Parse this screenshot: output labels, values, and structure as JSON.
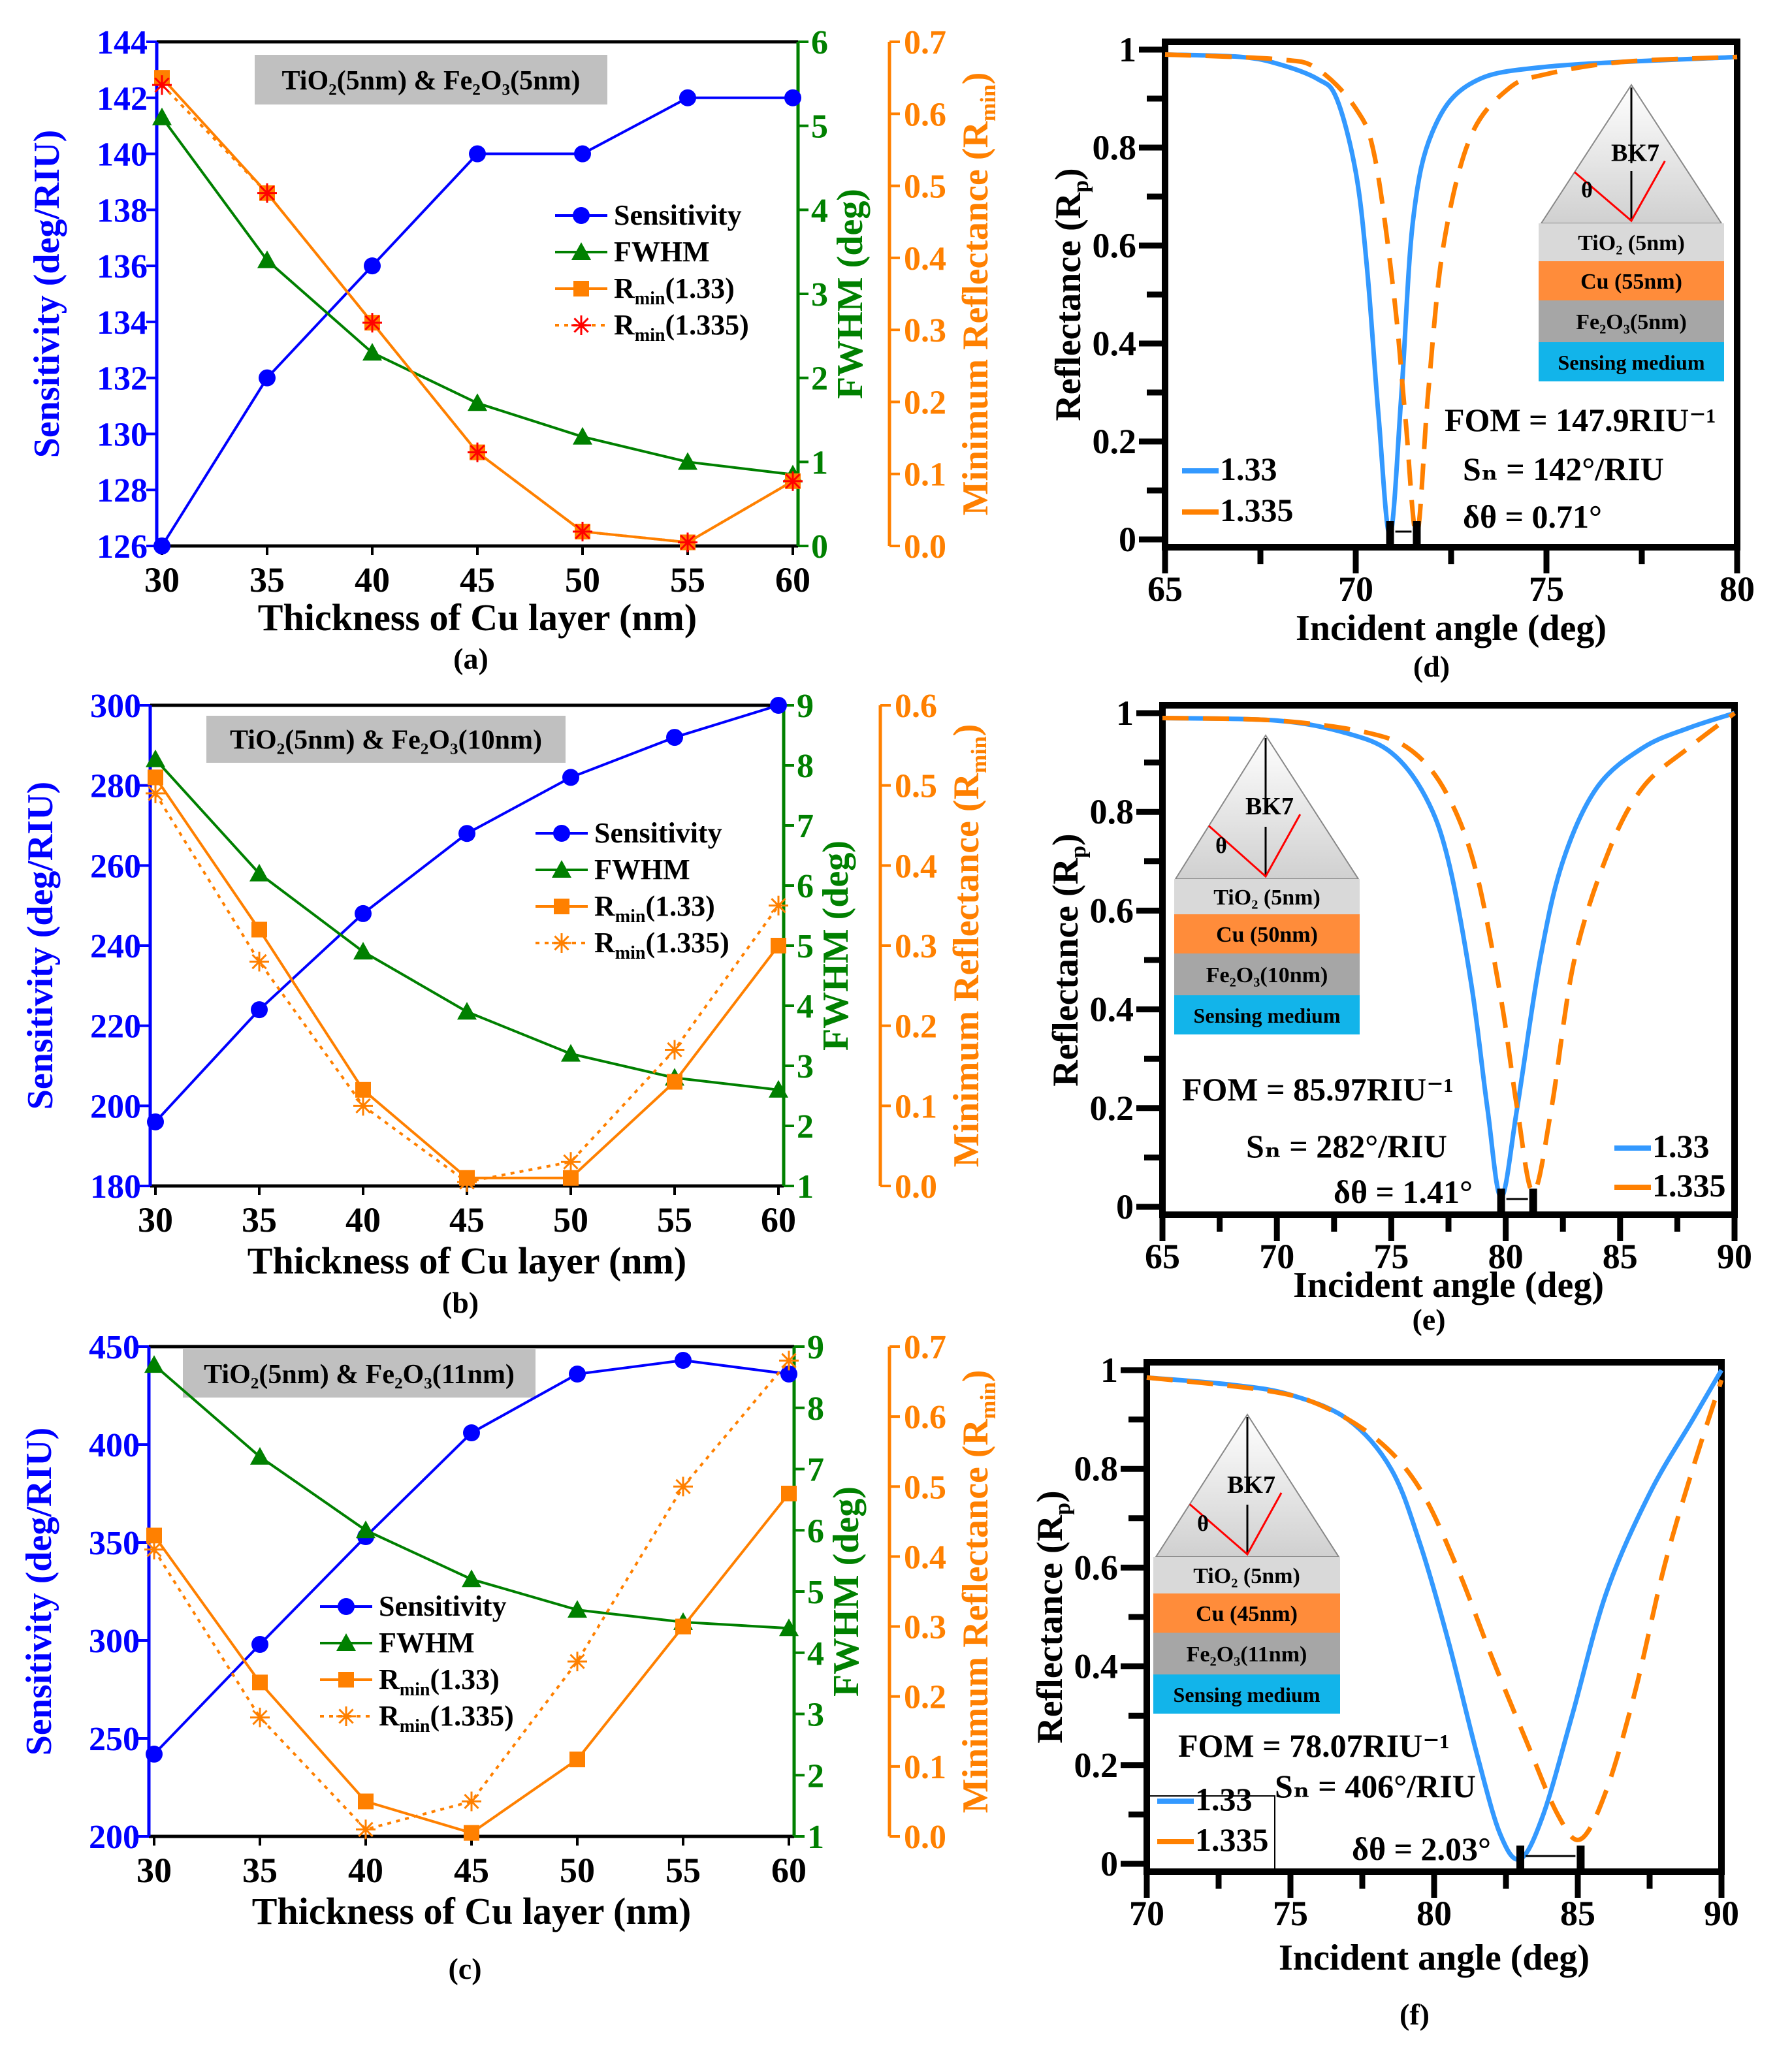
{
  "chart_data": [
    {
      "id": "a",
      "type": "line",
      "label": "(a)",
      "title_box": "TiO₂(5nm) & Fe₂O₃(5nm)",
      "xlabel": "Thickness of Cu layer (nm)",
      "x": [
        30,
        35,
        40,
        45,
        50,
        55,
        60
      ],
      "xlim": [
        30,
        60
      ],
      "xticks": [
        30,
        35,
        40,
        45,
        50,
        55,
        60
      ],
      "axes": {
        "left": {
          "label": "Sensitivity (deg/RIU)",
          "ylim": [
            126,
            144
          ],
          "ticks": [
            126,
            128,
            130,
            132,
            134,
            136,
            138,
            140,
            142,
            144
          ],
          "color": "#0000ff",
          "decimals": 0
        },
        "right": {
          "label": "FWHM (deg)",
          "ylim": [
            0,
            6
          ],
          "ticks": [
            0,
            1,
            2,
            3,
            4,
            5,
            6
          ],
          "color": "#008000",
          "decimals": 0
        },
        "right2": {
          "label": "Minimum Reflectance (R",
          "label_sub": "min",
          "label_tail": ")",
          "ylim": [
            0,
            0.7
          ],
          "ticks": [
            0,
            0.1,
            0.2,
            0.3,
            0.4,
            0.5,
            0.6,
            0.7
          ],
          "color": "#ff8000",
          "decimals": 1
        }
      },
      "series": [
        {
          "name": "Sensitivity",
          "axis": "left",
          "marker": "circle",
          "color": "#0000ff",
          "dash": "solid",
          "values": [
            126,
            132,
            136,
            140,
            140,
            142,
            142
          ]
        },
        {
          "name": "FWHM",
          "axis": "right",
          "marker": "triangle",
          "color": "#008000",
          "dash": "solid",
          "values": [
            5.1,
            3.4,
            2.3,
            1.7,
            1.3,
            1.0,
            0.85
          ]
        },
        {
          "name": "R",
          "name_sub": "min",
          "name_tail": "(1.33)",
          "axis": "right2",
          "marker": "square",
          "color": "#ff8000",
          "dash": "solid",
          "values": [
            0.65,
            0.49,
            0.31,
            0.13,
            0.02,
            0.005,
            0.09
          ]
        },
        {
          "name": "R",
          "name_sub": "min",
          "name_tail": "(1.335)",
          "axis": "right2",
          "marker": "asterisk",
          "color": "#ff8000",
          "marker_color": "#ff0000",
          "dash": "dotted",
          "values": [
            0.64,
            0.49,
            0.31,
            0.13,
            0.02,
            0.005,
            0.09
          ]
        }
      ],
      "legend": "center-right"
    },
    {
      "id": "b",
      "type": "line",
      "label": "(b)",
      "title_box": "TiO₂(5nm) & Fe₂O₃(10nm)",
      "xlabel": "Thickness of Cu layer (nm)",
      "x": [
        30,
        35,
        40,
        45,
        50,
        55,
        60
      ],
      "xlim": [
        30,
        60
      ],
      "xticks": [
        30,
        35,
        40,
        45,
        50,
        55,
        60
      ],
      "axes": {
        "left": {
          "label": "Sensitivity (deg/RIU)",
          "ylim": [
            180,
            300
          ],
          "ticks": [
            180,
            200,
            220,
            240,
            260,
            280,
            300
          ],
          "color": "#0000ff",
          "decimals": 0
        },
        "right": {
          "label": "FWHM (deg)",
          "ylim": [
            1,
            9
          ],
          "ticks": [
            1,
            2,
            3,
            4,
            5,
            6,
            7,
            8,
            9
          ],
          "color": "#008000",
          "decimals": 0
        },
        "right2": {
          "label": "Minimum Reflectance (R",
          "label_sub": "min",
          "label_tail": ")",
          "ylim": [
            0,
            0.6
          ],
          "ticks": [
            0,
            0.1,
            0.2,
            0.3,
            0.4,
            0.5,
            0.6
          ],
          "color": "#ff8000",
          "decimals": 1
        }
      },
      "series": [
        {
          "name": "Sensitivity",
          "axis": "left",
          "marker": "circle",
          "color": "#0000ff",
          "dash": "solid",
          "values": [
            196,
            224,
            248,
            268,
            282,
            292,
            300
          ]
        },
        {
          "name": "FWHM",
          "axis": "right",
          "marker": "triangle",
          "color": "#008000",
          "dash": "solid",
          "values": [
            8.1,
            6.2,
            4.9,
            3.9,
            3.2,
            2.8,
            2.6
          ]
        },
        {
          "name": "R",
          "name_sub": "min",
          "name_tail": "(1.33)",
          "axis": "right2",
          "marker": "square",
          "color": "#ff8000",
          "dash": "solid",
          "values": [
            0.51,
            0.32,
            0.12,
            0.01,
            0.01,
            0.13,
            0.3
          ]
        },
        {
          "name": "R",
          "name_sub": "min",
          "name_tail": "(1.335)",
          "axis": "right2",
          "marker": "asterisk",
          "color": "#ff8000",
          "marker_color": "#ff8000",
          "dash": "dotted",
          "values": [
            0.49,
            0.28,
            0.1,
            0.005,
            0.03,
            0.17,
            0.35
          ]
        }
      ],
      "legend": "center-right"
    },
    {
      "id": "c",
      "type": "line",
      "label": "(c)",
      "title_box": "TiO₂(5nm) & Fe₂O₃(11nm)",
      "xlabel": "Thickness of Cu layer (nm)",
      "x": [
        30,
        35,
        40,
        45,
        50,
        55,
        60
      ],
      "xlim": [
        30,
        60
      ],
      "xticks": [
        30,
        35,
        40,
        45,
        50,
        55,
        60
      ],
      "axes": {
        "left": {
          "label": "Sensitivity (deg/RIU)",
          "ylim": [
            200,
            450
          ],
          "ticks": [
            200,
            250,
            300,
            350,
            400,
            450
          ],
          "color": "#0000ff",
          "decimals": 0
        },
        "right": {
          "label": "FWHM (deg)",
          "ylim": [
            1,
            9
          ],
          "ticks": [
            1,
            2,
            3,
            4,
            5,
            6,
            7,
            8,
            9
          ],
          "color": "#008000",
          "decimals": 0
        },
        "right2": {
          "label": "Minimum Reflectance (R",
          "label_sub": "min",
          "label_tail": ")",
          "ylim": [
            0,
            0.7
          ],
          "ticks": [
            0,
            0.1,
            0.2,
            0.3,
            0.4,
            0.5,
            0.6,
            0.7
          ],
          "color": "#ff8000",
          "decimals": 1
        }
      },
      "series": [
        {
          "name": "Sensitivity",
          "axis": "left",
          "marker": "circle",
          "color": "#0000ff",
          "dash": "solid",
          "values": [
            242,
            298,
            353,
            406,
            436,
            443,
            436
          ]
        },
        {
          "name": "FWHM",
          "axis": "right",
          "marker": "triangle",
          "color": "#008000",
          "dash": "solid",
          "values": [
            8.7,
            7.2,
            6.0,
            5.2,
            4.7,
            4.5,
            4.4
          ]
        },
        {
          "name": "R",
          "name_sub": "min",
          "name_tail": "(1.33)",
          "axis": "right2",
          "marker": "square",
          "color": "#ff8000",
          "dash": "solid",
          "values": [
            0.43,
            0.22,
            0.05,
            0.005,
            0.11,
            0.3,
            0.49
          ]
        },
        {
          "name": "R",
          "name_sub": "min",
          "name_tail": "(1.335)",
          "axis": "right2",
          "marker": "asterisk",
          "color": "#ff8000",
          "marker_color": "#ff8000",
          "dash": "dotted",
          "values": [
            0.41,
            0.17,
            0.01,
            0.05,
            0.25,
            0.5,
            0.68
          ]
        }
      ],
      "legend": "center"
    },
    {
      "id": "d",
      "type": "line",
      "label": "(d)",
      "xlabel": "Incident angle (deg)",
      "ylabel": "Reflectance (R",
      "ylabel_sub": "p",
      "ylabel_tail": ")",
      "xlim": [
        65,
        80
      ],
      "xticks": [
        65,
        70,
        75,
        80
      ],
      "ylim": [
        0,
        1
      ],
      "yticks": [
        0,
        0.2,
        0.4,
        0.6,
        0.8,
        1
      ],
      "series": [
        {
          "name": "1.33",
          "color": "#3399ff",
          "dash": "solid",
          "x": [
            65,
            67,
            68,
            69,
            69.5,
            70,
            70.3,
            70.6,
            70.9,
            71.2,
            71.5,
            72,
            73,
            75,
            80
          ],
          "y": [
            0.99,
            0.985,
            0.97,
            0.94,
            0.9,
            0.75,
            0.55,
            0.25,
            0.01,
            0.3,
            0.65,
            0.83,
            0.93,
            0.965,
            0.985
          ]
        },
        {
          "name": "1.335",
          "color": "#ff8000",
          "dash": "dashed",
          "x": [
            65,
            68,
            69,
            70,
            70.5,
            71,
            71.3,
            71.6,
            71.9,
            72.3,
            73,
            74,
            75,
            77,
            80
          ],
          "y": [
            0.99,
            0.98,
            0.96,
            0.88,
            0.78,
            0.5,
            0.25,
            0.01,
            0.3,
            0.6,
            0.82,
            0.92,
            0.95,
            0.975,
            0.985
          ]
        }
      ],
      "inset": {
        "prism": "BK7",
        "angle": "θ",
        "layers": [
          {
            "label": "TiO₂ (5nm)",
            "color": "#d9d9d9"
          },
          {
            "label": "Cu (55nm)",
            "color": "#ff8c3a"
          },
          {
            "label": "Fe₂O₃(5nm)",
            "color": "#a6a6a6"
          },
          {
            "label": "Sensing medium",
            "color": "#12b4ea"
          }
        ]
      },
      "annotations": {
        "fom": "FOM = 147.9RIU⁻¹",
        "sn": "Sₙ = 142°/RIU",
        "dtheta": "δθ = 0.71°"
      },
      "legend": "bottom-left"
    },
    {
      "id": "e",
      "type": "line",
      "label": "(e)",
      "xlabel": "Incident angle (deg)",
      "ylabel": "Reflectance (R",
      "ylabel_sub": "p",
      "ylabel_tail": ")",
      "xlim": [
        65,
        90
      ],
      "xticks": [
        65,
        70,
        75,
        80,
        85,
        90
      ],
      "ylim": [
        0,
        1
      ],
      "yticks": [
        0,
        0.2,
        0.4,
        0.6,
        0.8,
        1
      ],
      "series": [
        {
          "name": "1.33",
          "color": "#3399ff",
          "dash": "solid",
          "x": [
            65,
            70,
            73,
            75,
            76.5,
            77.5,
            78.5,
            79.2,
            79.8,
            80.5,
            81.5,
            82.5,
            84,
            86,
            88,
            90
          ],
          "y": [
            0.99,
            0.985,
            0.96,
            0.92,
            0.83,
            0.7,
            0.45,
            0.2,
            0.02,
            0.2,
            0.5,
            0.7,
            0.85,
            0.93,
            0.97,
            1.0
          ]
        },
        {
          "name": "1.335",
          "color": "#ff8000",
          "dash": "dashed",
          "x": [
            65,
            70,
            74,
            76,
            77.5,
            78.7,
            79.8,
            80.5,
            81.2,
            82,
            83,
            84.5,
            86,
            88,
            90
          ],
          "y": [
            0.99,
            0.985,
            0.96,
            0.92,
            0.83,
            0.68,
            0.42,
            0.2,
            0.03,
            0.2,
            0.5,
            0.72,
            0.85,
            0.93,
            1.0
          ]
        }
      ],
      "inset": {
        "prism": "BK7",
        "angle": "θ",
        "layers": [
          {
            "label": "TiO₂ (5nm)",
            "color": "#d9d9d9"
          },
          {
            "label": "Cu (50nm)",
            "color": "#ff8c3a"
          },
          {
            "label": "Fe₂O₃(10nm)",
            "color": "#a6a6a6"
          },
          {
            "label": "Sensing medium",
            "color": "#12b4ea"
          }
        ]
      },
      "annotations": {
        "fom": "FOM = 85.97RIU⁻¹",
        "sn": "Sₙ = 282°/RIU",
        "dtheta": "δθ = 1.41°"
      },
      "legend": "bottom-right"
    },
    {
      "id": "f",
      "type": "line",
      "label": "(f)",
      "xlabel": "Incident angle (deg)",
      "ylabel": "Reflectance (R",
      "ylabel_sub": "p",
      "ylabel_tail": ")",
      "xlim": [
        70,
        90
      ],
      "xticks": [
        70,
        75,
        80,
        85,
        90
      ],
      "ylim": [
        0,
        1
      ],
      "yticks": [
        0,
        0.2,
        0.4,
        0.6,
        0.8,
        1
      ],
      "series": [
        {
          "name": "1.33",
          "color": "#3399ff",
          "dash": "solid",
          "x": [
            70,
            73,
            75,
            77,
            78.5,
            79.5,
            80.5,
            81.5,
            82.3,
            83,
            83.8,
            84.8,
            86,
            87.5,
            89,
            90
          ],
          "y": [
            0.985,
            0.97,
            0.95,
            0.9,
            0.8,
            0.65,
            0.45,
            0.22,
            0.06,
            0.01,
            0.1,
            0.3,
            0.55,
            0.75,
            0.9,
            1.0
          ]
        },
        {
          "name": "1.335",
          "color": "#ff8000",
          "dash": "dashed",
          "x": [
            70,
            74,
            76,
            78,
            79.5,
            80.8,
            82,
            83.2,
            84.3,
            85.1,
            86,
            87,
            88,
            89,
            90
          ],
          "y": [
            0.985,
            0.96,
            0.93,
            0.86,
            0.76,
            0.6,
            0.42,
            0.25,
            0.1,
            0.05,
            0.15,
            0.35,
            0.6,
            0.8,
            0.98
          ]
        }
      ],
      "inset": {
        "prism": "BK7",
        "angle": "θ",
        "layers": [
          {
            "label": "TiO₂ (5nm)",
            "color": "#d9d9d9"
          },
          {
            "label": "Cu (45nm)",
            "color": "#ff8c3a"
          },
          {
            "label": "Fe₂O₃(11nm)",
            "color": "#a6a6a6"
          },
          {
            "label": "Sensing medium",
            "color": "#12b4ea"
          }
        ]
      },
      "annotations": {
        "fom": "FOM = 78.07RIU⁻¹",
        "sn": "Sₙ = 406°/RIU",
        "dtheta": "δθ = 2.03°"
      },
      "legend": "bottom-left"
    }
  ]
}
